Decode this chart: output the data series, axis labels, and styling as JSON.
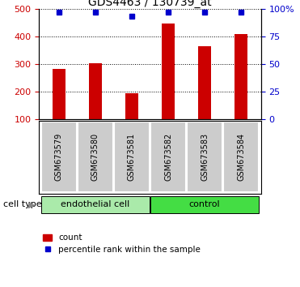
{
  "title": "GDS4463 / 130739_at",
  "samples": [
    "GSM673579",
    "GSM673580",
    "GSM673581",
    "GSM673582",
    "GSM673583",
    "GSM673584"
  ],
  "counts": [
    282,
    303,
    195,
    445,
    363,
    408
  ],
  "percentiles": [
    97,
    97,
    93,
    97,
    97,
    97
  ],
  "groups": [
    {
      "label": "endothelial cell",
      "indices": [
        0,
        1,
        2
      ],
      "color": "#aaeaaa"
    },
    {
      "label": "control",
      "indices": [
        3,
        4,
        5
      ],
      "color": "#44dd44"
    }
  ],
  "bar_color": "#cc0000",
  "dot_color": "#0000cc",
  "ylim_left": [
    100,
    500
  ],
  "ylim_right": [
    0,
    100
  ],
  "yticks_left": [
    100,
    200,
    300,
    400,
    500
  ],
  "yticks_right": [
    0,
    25,
    50,
    75,
    100
  ],
  "yticklabels_right": [
    "0",
    "25",
    "50",
    "75",
    "100%"
  ],
  "grid_color": "#000000",
  "tick_color_left": "#cc0000",
  "tick_color_right": "#0000cc",
  "bg_label": "#cccccc",
  "legend_count_label": "count",
  "legend_pct_label": "percentile rank within the sample",
  "cell_type_label": "cell type",
  "bar_width": 0.35
}
